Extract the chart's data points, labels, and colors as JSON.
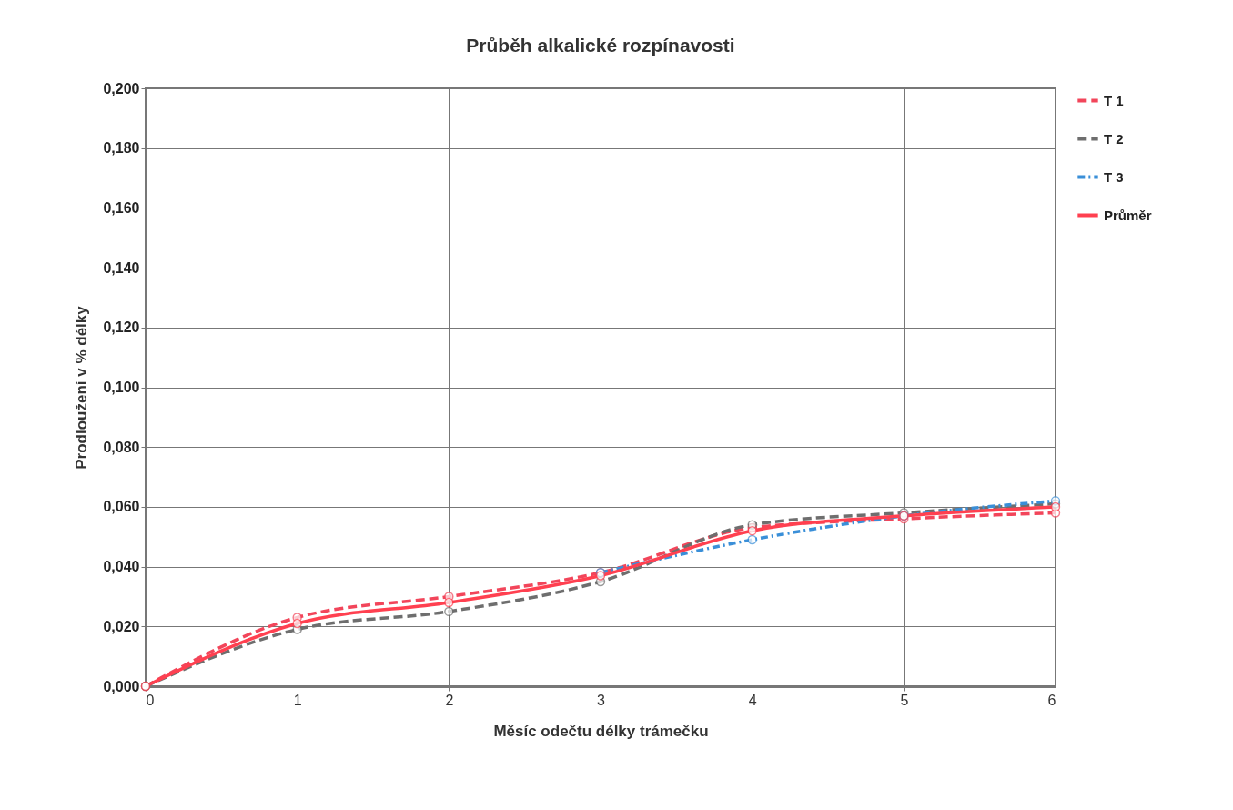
{
  "chart_data": {
    "type": "line",
    "title": "Průběh alkalické rozpínavosti",
    "xlabel": "Měsíc odečtu délky trámečku",
    "ylabel": "Prodloužení v % délky",
    "x": [
      0,
      1,
      2,
      3,
      4,
      5,
      6
    ],
    "series": [
      {
        "name": "T 1",
        "color": "#f2455a",
        "line_style": "dashed",
        "values": [
          0,
          0.023,
          0.03,
          0.038,
          0.053,
          0.056,
          0.058
        ]
      },
      {
        "name": "T 2",
        "color": "#6e6e6e",
        "line_style": "dashed",
        "values": [
          0,
          0.019,
          0.025,
          0.035,
          0.054,
          0.058,
          0.061
        ]
      },
      {
        "name": "T 3",
        "color": "#3a8fd8",
        "line_style": "dotted",
        "values": [
          null,
          null,
          null,
          0.038,
          0.049,
          0.057,
          0.062
        ]
      },
      {
        "name": "Průměr",
        "color": "#ff4050",
        "line_style": "solid",
        "values": [
          0,
          0.021,
          0.028,
          0.037,
          0.052,
          0.057,
          0.06
        ]
      }
    ],
    "xlim": [
      0,
      6
    ],
    "xticks": [
      0,
      1,
      2,
      3,
      4,
      5,
      6
    ],
    "ylim": [
      0,
      0.2
    ],
    "yticks": [
      {
        "value": 0,
        "label": "0,000"
      },
      {
        "value": 0.02,
        "label": "0,020"
      },
      {
        "value": 0.04,
        "label": "0,040"
      },
      {
        "value": 0.06,
        "label": "0,060"
      },
      {
        "value": 0.08,
        "label": "0,080"
      },
      {
        "value": 0.1,
        "label": "0,100"
      },
      {
        "value": 0.12,
        "label": "0,120"
      },
      {
        "value": 0.14,
        "label": "0,140"
      },
      {
        "value": 0.16,
        "label": "0,160"
      },
      {
        "value": 0.18,
        "label": "0,180"
      },
      {
        "value": 0.2,
        "label": "0,200"
      }
    ],
    "grid": true,
    "legend": "right",
    "marker": "circle"
  }
}
